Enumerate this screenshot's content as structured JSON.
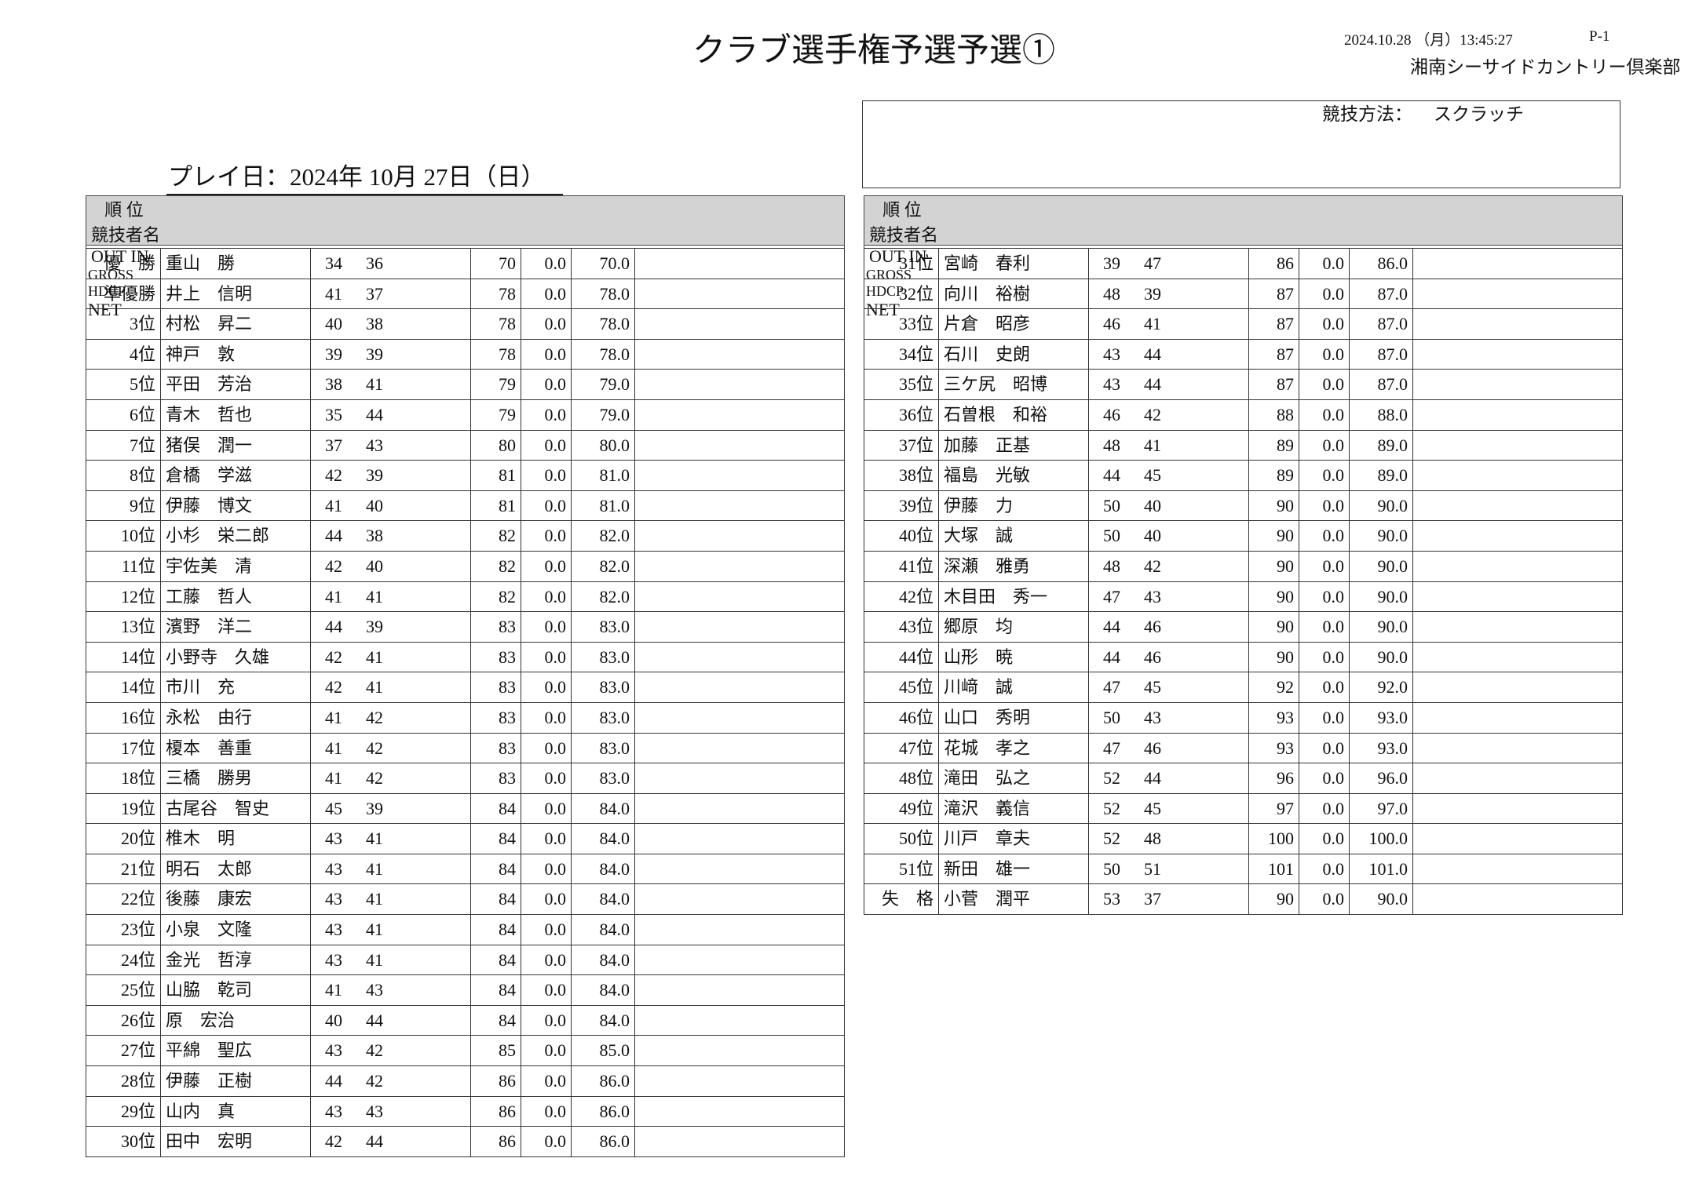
{
  "header": {
    "title": "クラブ選手権予選予選①",
    "timestamp": "2024.10.28 （月）13:45:27",
    "page": "P-1",
    "club": "湘南シーサイドカントリー倶楽部"
  },
  "method": {
    "label": "競技方法：",
    "value": "スクラッチ"
  },
  "play_date": "プレイ日：2024年 10月 27日（日）",
  "columns": [
    "順 位",
    "競技者名",
    "OUT IN",
    "GROSS",
    "HDCP",
    "NET"
  ],
  "tables": [
    {
      "rows": [
        [
          "優　勝",
          "重山　勝",
          "34",
          "36",
          "70",
          "0.0",
          "70.0"
        ],
        [
          "準優勝",
          "井上　信明",
          "41",
          "37",
          "78",
          "0.0",
          "78.0"
        ],
        [
          "3位",
          "村松　昇二",
          "40",
          "38",
          "78",
          "0.0",
          "78.0"
        ],
        [
          "4位",
          "神戸　敦",
          "39",
          "39",
          "78",
          "0.0",
          "78.0"
        ],
        [
          "5位",
          "平田　芳治",
          "38",
          "41",
          "79",
          "0.0",
          "79.0"
        ],
        [
          "6位",
          "青木　哲也",
          "35",
          "44",
          "79",
          "0.0",
          "79.0"
        ],
        [
          "7位",
          "猪俣　潤一",
          "37",
          "43",
          "80",
          "0.0",
          "80.0"
        ],
        [
          "8位",
          "倉橋　学滋",
          "42",
          "39",
          "81",
          "0.0",
          "81.0"
        ],
        [
          "9位",
          "伊藤　博文",
          "41",
          "40",
          "81",
          "0.0",
          "81.0"
        ],
        [
          "10位",
          "小杉　栄二郎",
          "44",
          "38",
          "82",
          "0.0",
          "82.0"
        ],
        [
          "11位",
          "宇佐美　清",
          "42",
          "40",
          "82",
          "0.0",
          "82.0"
        ],
        [
          "12位",
          "工藤　哲人",
          "41",
          "41",
          "82",
          "0.0",
          "82.0"
        ],
        [
          "13位",
          "濱野　洋二",
          "44",
          "39",
          "83",
          "0.0",
          "83.0"
        ],
        [
          "14位",
          "小野寺　久雄",
          "42",
          "41",
          "83",
          "0.0",
          "83.0"
        ],
        [
          "14位",
          "市川　充",
          "42",
          "41",
          "83",
          "0.0",
          "83.0"
        ],
        [
          "16位",
          "永松　由行",
          "41",
          "42",
          "83",
          "0.0",
          "83.0"
        ],
        [
          "17位",
          "榎本　善重",
          "41",
          "42",
          "83",
          "0.0",
          "83.0"
        ],
        [
          "18位",
          "三橋　勝男",
          "41",
          "42",
          "83",
          "0.0",
          "83.0"
        ],
        [
          "19位",
          "古尾谷　智史",
          "45",
          "39",
          "84",
          "0.0",
          "84.0"
        ],
        [
          "20位",
          "椎木　明",
          "43",
          "41",
          "84",
          "0.0",
          "84.0"
        ],
        [
          "21位",
          "明石　太郎",
          "43",
          "41",
          "84",
          "0.0",
          "84.0"
        ],
        [
          "22位",
          "後藤　康宏",
          "43",
          "41",
          "84",
          "0.0",
          "84.0"
        ],
        [
          "23位",
          "小泉　文隆",
          "43",
          "41",
          "84",
          "0.0",
          "84.0"
        ],
        [
          "24位",
          "金光　哲淳",
          "43",
          "41",
          "84",
          "0.0",
          "84.0"
        ],
        [
          "25位",
          "山脇　乾司",
          "41",
          "43",
          "84",
          "0.0",
          "84.0"
        ],
        [
          "26位",
          "原　宏治",
          "40",
          "44",
          "84",
          "0.0",
          "84.0"
        ],
        [
          "27位",
          "平綿　聖広",
          "43",
          "42",
          "85",
          "0.0",
          "85.0"
        ],
        [
          "28位",
          "伊藤　正樹",
          "44",
          "42",
          "86",
          "0.0",
          "86.0"
        ],
        [
          "29位",
          "山内　真",
          "43",
          "43",
          "86",
          "0.0",
          "86.0"
        ],
        [
          "30位",
          "田中　宏明",
          "42",
          "44",
          "86",
          "0.0",
          "86.0"
        ]
      ]
    },
    {
      "rows": [
        [
          "31位",
          "宮崎　春利",
          "39",
          "47",
          "86",
          "0.0",
          "86.0"
        ],
        [
          "32位",
          "向川　裕樹",
          "48",
          "39",
          "87",
          "0.0",
          "87.0"
        ],
        [
          "33位",
          "片倉　昭彦",
          "46",
          "41",
          "87",
          "0.0",
          "87.0"
        ],
        [
          "34位",
          "石川　史朗",
          "43",
          "44",
          "87",
          "0.0",
          "87.0"
        ],
        [
          "35位",
          "三ケ尻　昭博",
          "43",
          "44",
          "87",
          "0.0",
          "87.0"
        ],
        [
          "36位",
          "石曽根　和裕",
          "46",
          "42",
          "88",
          "0.0",
          "88.0"
        ],
        [
          "37位",
          "加藤　正基",
          "48",
          "41",
          "89",
          "0.0",
          "89.0"
        ],
        [
          "38位",
          "福島　光敏",
          "44",
          "45",
          "89",
          "0.0",
          "89.0"
        ],
        [
          "39位",
          "伊藤　力",
          "50",
          "40",
          "90",
          "0.0",
          "90.0"
        ],
        [
          "40位",
          "大塚　誠",
          "50",
          "40",
          "90",
          "0.0",
          "90.0"
        ],
        [
          "41位",
          "深瀬　雅勇",
          "48",
          "42",
          "90",
          "0.0",
          "90.0"
        ],
        [
          "42位",
          "木目田　秀一",
          "47",
          "43",
          "90",
          "0.0",
          "90.0"
        ],
        [
          "43位",
          "郷原　均",
          "44",
          "46",
          "90",
          "0.0",
          "90.0"
        ],
        [
          "44位",
          "山形　暁",
          "44",
          "46",
          "90",
          "0.0",
          "90.0"
        ],
        [
          "45位",
          "川﨑　誠",
          "47",
          "45",
          "92",
          "0.0",
          "92.0"
        ],
        [
          "46位",
          "山口　秀明",
          "50",
          "43",
          "93",
          "0.0",
          "93.0"
        ],
        [
          "47位",
          "花城　孝之",
          "47",
          "46",
          "93",
          "0.0",
          "93.0"
        ],
        [
          "48位",
          "滝田　弘之",
          "52",
          "44",
          "96",
          "0.0",
          "96.0"
        ],
        [
          "49位",
          "滝沢　義信",
          "52",
          "45",
          "97",
          "0.0",
          "97.0"
        ],
        [
          "50位",
          "川戸　章夫",
          "52",
          "48",
          "100",
          "0.0",
          "100.0"
        ],
        [
          "51位",
          "新田　雄一",
          "50",
          "51",
          "101",
          "0.0",
          "101.0"
        ],
        [
          "失　格",
          "小菅　潤平",
          "53",
          "37",
          "90",
          "0.0",
          "90.0"
        ]
      ]
    }
  ]
}
